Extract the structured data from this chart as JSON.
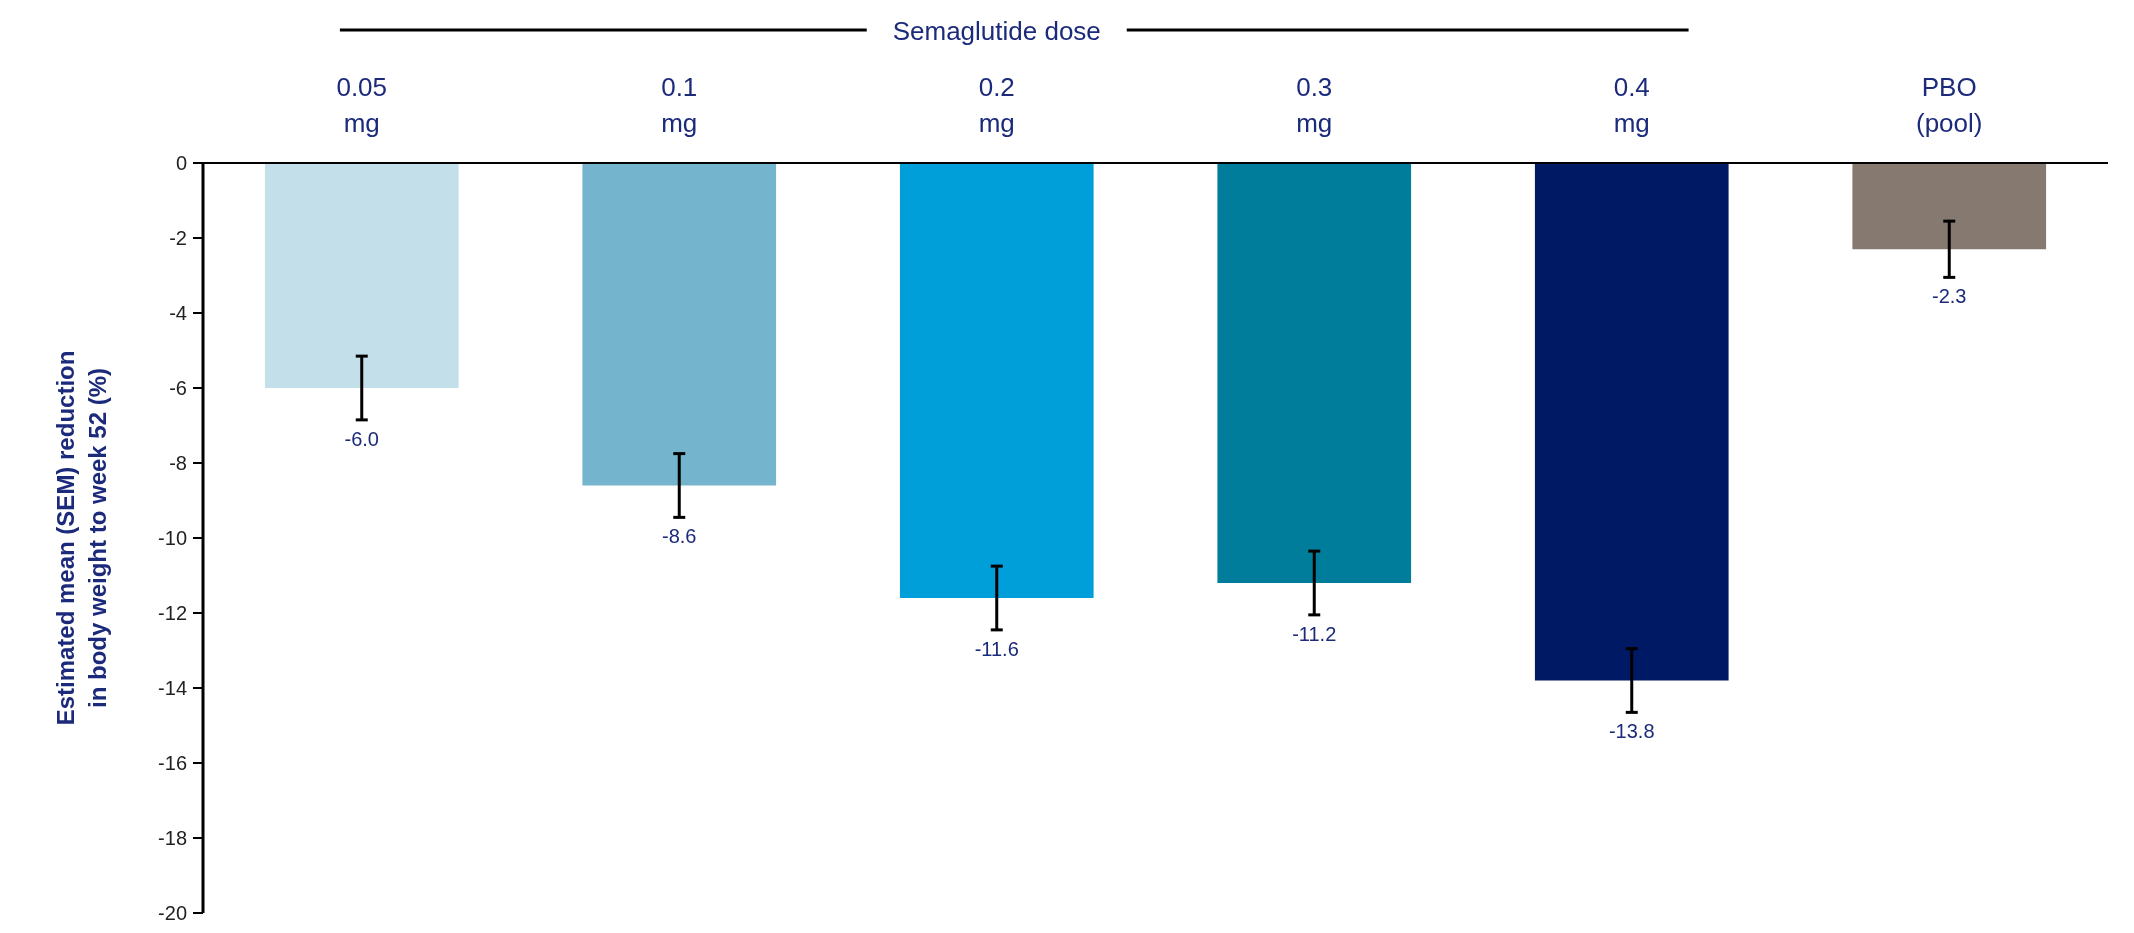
{
  "chart_data": {
    "type": "bar",
    "title": "Semaglutide dose",
    "ylabel": "Estimated mean (SEM) reduction in body weight to week 52 (%)",
    "categories": [
      "0.05 mg",
      "0.1 mg",
      "0.2 mg",
      "0.3 mg",
      "0.4 mg",
      "PBO (pool)"
    ],
    "values": [
      -6.0,
      -8.6,
      -11.6,
      -11.2,
      -13.8,
      -2.3
    ],
    "colors": [
      "#c3dfea",
      "#74b5cd",
      "#009fda",
      "#007d9b",
      "#001965",
      "#857970"
    ],
    "errors": [
      0.85,
      0.85,
      0.85,
      0.85,
      0.85,
      0.75
    ],
    "value_labels": [
      "-6.0",
      "-8.6",
      "-11.6",
      "-11.2",
      "-13.8",
      "-2.3"
    ],
    "ylim": [
      -20,
      0
    ],
    "yticks": [
      0,
      -2,
      -4,
      -6,
      -8,
      -10,
      -12,
      -14,
      -16,
      -18,
      -20
    ],
    "grid": false
  }
}
